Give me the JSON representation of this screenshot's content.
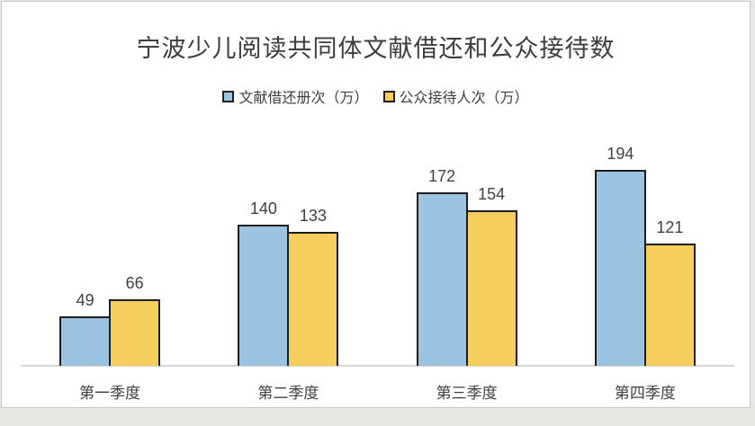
{
  "page": {
    "background_color": "#e9e8e4",
    "card_background": "#ffffff",
    "card_border_color": "#c9c8c3",
    "text_color": "#404040",
    "axis_line_color": "#d8d7d3"
  },
  "chart_data": {
    "type": "bar",
    "title": "宁波少儿阅读共同体文献借还和公众接待数",
    "categories": [
      "第一季度",
      "第二季度",
      "第三季度",
      "第四季度"
    ],
    "series": [
      {
        "name": "文献借还册次（万）",
        "color": "#9cc3e1",
        "border_color": "#1e1e1e",
        "values": [
          49,
          140,
          172,
          194
        ]
      },
      {
        "name": "公众接待人次（万）",
        "color": "#f6ce5d",
        "border_color": "#1e1e1e",
        "values": [
          66,
          133,
          154,
          121
        ]
      }
    ],
    "ylim": [
      0,
      210
    ],
    "grid": false,
    "legend_position": "top",
    "data_labels": true,
    "xlabel": "",
    "ylabel": ""
  }
}
